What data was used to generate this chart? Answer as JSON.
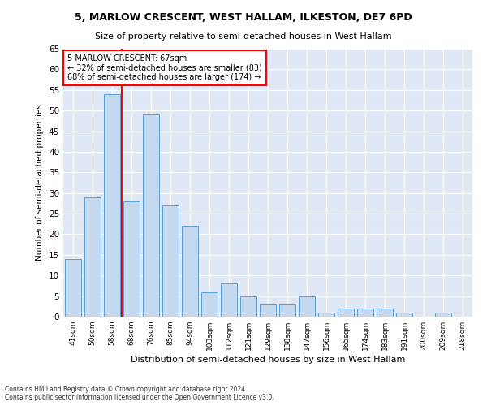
{
  "title1": "5, MARLOW CRESCENT, WEST HALLAM, ILKESTON, DE7 6PD",
  "title2": "Size of property relative to semi-detached houses in West Hallam",
  "xlabel": "Distribution of semi-detached houses by size in West Hallam",
  "ylabel": "Number of semi-detached properties",
  "footnote1": "Contains HM Land Registry data © Crown copyright and database right 2024.",
  "footnote2": "Contains public sector information licensed under the Open Government Licence v3.0.",
  "categories": [
    "41sqm",
    "50sqm",
    "58sqm",
    "68sqm",
    "76sqm",
    "85sqm",
    "94sqm",
    "103sqm",
    "112sqm",
    "121sqm",
    "129sqm",
    "138sqm",
    "147sqm",
    "156sqm",
    "165sqm",
    "174sqm",
    "183sqm",
    "191sqm",
    "200sqm",
    "209sqm",
    "218sqm"
  ],
  "values": [
    14,
    29,
    54,
    28,
    49,
    27,
    22,
    6,
    8,
    5,
    3,
    3,
    5,
    1,
    2,
    2,
    2,
    1,
    0,
    1,
    0
  ],
  "bar_color": "#c5d8ed",
  "bar_edge_color": "#5a9fd4",
  "bg_color": "#e0e8f5",
  "annotation_text1": "5 MARLOW CRESCENT: 67sqm",
  "annotation_text2": "← 32% of semi-detached houses are smaller (83)",
  "annotation_text3": "68% of semi-detached houses are larger (174) →",
  "annotation_box_facecolor": "white",
  "annotation_box_edgecolor": "red",
  "vline_color": "red",
  "ylim": [
    0,
    65
  ],
  "yticks": [
    0,
    5,
    10,
    15,
    20,
    25,
    30,
    35,
    40,
    45,
    50,
    55,
    60,
    65
  ],
  "vline_xindex": 2.5
}
